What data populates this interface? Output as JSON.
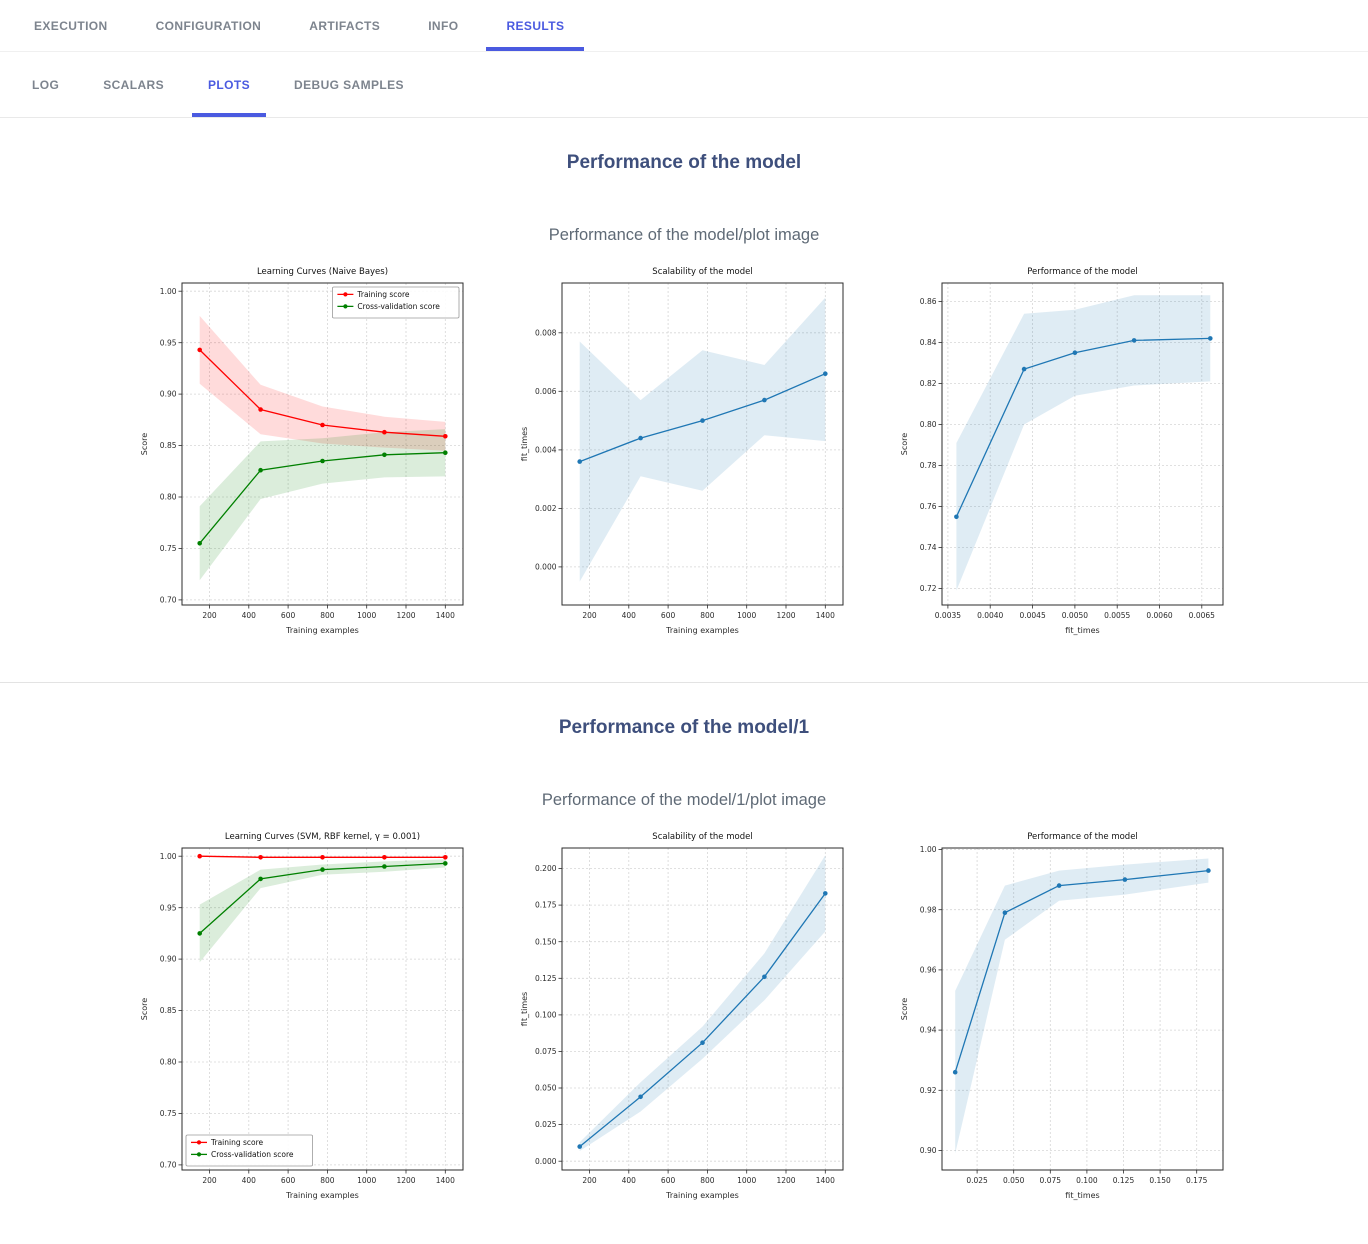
{
  "theme": {
    "accent": "#4a5ae0",
    "heading_color": "#3e4f7c",
    "subtitle_color": "#5f6a76",
    "inactive_tab_color": "#7d848e",
    "series_red": "#ff0000",
    "series_green": "#008000",
    "series_blue": "#1f77b4"
  },
  "nav": {
    "tabs": [
      {
        "label": "EXECUTION",
        "active": false
      },
      {
        "label": "CONFIGURATION",
        "active": false
      },
      {
        "label": "ARTIFACTS",
        "active": false
      },
      {
        "label": "INFO",
        "active": false
      },
      {
        "label": "RESULTS",
        "active": true
      }
    ]
  },
  "subnav": {
    "tabs": [
      {
        "label": "LOG",
        "active": false
      },
      {
        "label": "SCALARS",
        "active": false
      },
      {
        "label": "PLOTS",
        "active": true
      },
      {
        "label": "DEBUG SAMPLES",
        "active": false
      }
    ]
  },
  "sections": [
    {
      "title": "Performance of the model",
      "subtitle": "Performance of the model/plot image",
      "chart_ids": [
        0,
        1,
        2
      ]
    },
    {
      "title": "Performance of the model/1",
      "subtitle": "Performance of the model/1/plot image",
      "chart_ids": [
        3,
        4,
        5
      ]
    }
  ],
  "chart_data": [
    {
      "type": "line",
      "title": "Learning Curves (Naive Bayes)",
      "xlabel": "Training examples",
      "ylabel": "Score",
      "xlim": [
        60,
        1490
      ],
      "ylim": [
        0.695,
        1.008
      ],
      "xticks": [
        200,
        400,
        600,
        800,
        1000,
        1200,
        1400
      ],
      "xtick_labels": [
        "200",
        "400",
        "600",
        "800",
        "1000",
        "1200",
        "1400"
      ],
      "yticks": [
        0.7,
        0.75,
        0.8,
        0.85,
        0.9,
        0.95,
        1.0
      ],
      "ytick_labels": [
        "0.70",
        "0.75",
        "0.80",
        "0.85",
        "0.90",
        "0.95",
        "1.00"
      ],
      "grid": true,
      "legend": "top-right",
      "series": [
        {
          "name": "Training score",
          "color": "#ff0000",
          "x": [
            150,
            460,
            775,
            1090,
            1400
          ],
          "y": [
            0.943,
            0.885,
            0.87,
            0.863,
            0.859
          ],
          "band_lo": [
            0.91,
            0.861,
            0.852,
            0.848,
            0.845
          ],
          "band_hi": [
            0.976,
            0.909,
            0.888,
            0.878,
            0.873
          ]
        },
        {
          "name": "Cross-validation score",
          "color": "#008000",
          "x": [
            150,
            460,
            775,
            1090,
            1400
          ],
          "y": [
            0.755,
            0.826,
            0.835,
            0.841,
            0.843
          ],
          "band_lo": [
            0.719,
            0.798,
            0.813,
            0.819,
            0.82
          ],
          "band_hi": [
            0.791,
            0.854,
            0.857,
            0.863,
            0.866
          ]
        }
      ]
    },
    {
      "type": "line",
      "title": "Scalability of the model",
      "xlabel": "Training examples",
      "ylabel": "fit_times",
      "xlim": [
        60,
        1490
      ],
      "ylim": [
        -0.0013,
        0.0097
      ],
      "xticks": [
        200,
        400,
        600,
        800,
        1000,
        1200,
        1400
      ],
      "xtick_labels": [
        "200",
        "400",
        "600",
        "800",
        "1000",
        "1200",
        "1400"
      ],
      "yticks": [
        0.0,
        0.002,
        0.004,
        0.006,
        0.008
      ],
      "ytick_labels": [
        "0.000",
        "0.002",
        "0.004",
        "0.006",
        "0.008"
      ],
      "grid": true,
      "legend": null,
      "series": [
        {
          "name": "fit_times",
          "color": "#1f77b4",
          "x": [
            150,
            460,
            775,
            1090,
            1400
          ],
          "y": [
            0.0036,
            0.0044,
            0.005,
            0.0057,
            0.0066
          ],
          "band_lo": [
            -0.0005,
            0.0031,
            0.0026,
            0.0045,
            0.0043
          ],
          "band_hi": [
            0.0077,
            0.0057,
            0.0074,
            0.0069,
            0.0092
          ]
        }
      ]
    },
    {
      "type": "line",
      "title": "Performance of the model",
      "xlabel": "fit_times",
      "ylabel": "Score",
      "xlim": [
        0.00343,
        0.00675
      ],
      "ylim": [
        0.712,
        0.869
      ],
      "xticks": [
        0.0035,
        0.004,
        0.0045,
        0.005,
        0.0055,
        0.006,
        0.0065
      ],
      "xtick_labels": [
        "0.0035",
        "0.0040",
        "0.0045",
        "0.0050",
        "0.0055",
        "0.0060",
        "0.0065"
      ],
      "yticks": [
        0.72,
        0.74,
        0.76,
        0.78,
        0.8,
        0.82,
        0.84,
        0.86
      ],
      "ytick_labels": [
        "0.72",
        "0.74",
        "0.76",
        "0.78",
        "0.80",
        "0.82",
        "0.84",
        "0.86"
      ],
      "grid": true,
      "legend": null,
      "series": [
        {
          "name": "Score",
          "color": "#1f77b4",
          "x": [
            0.0036,
            0.0044,
            0.005,
            0.0057,
            0.0066
          ],
          "y": [
            0.755,
            0.827,
            0.835,
            0.841,
            0.842
          ],
          "band_lo": [
            0.719,
            0.8,
            0.814,
            0.819,
            0.821
          ],
          "band_hi": [
            0.791,
            0.854,
            0.856,
            0.863,
            0.863
          ]
        }
      ]
    },
    {
      "type": "line",
      "title": "Learning Curves (SVM, RBF kernel, γ = 0.001)",
      "xlabel": "Training examples",
      "ylabel": "Score",
      "xlim": [
        60,
        1490
      ],
      "ylim": [
        0.695,
        1.008
      ],
      "xticks": [
        200,
        400,
        600,
        800,
        1000,
        1200,
        1400
      ],
      "xtick_labels": [
        "200",
        "400",
        "600",
        "800",
        "1000",
        "1200",
        "1400"
      ],
      "yticks": [
        0.7,
        0.75,
        0.8,
        0.85,
        0.9,
        0.95,
        1.0
      ],
      "ytick_labels": [
        "0.70",
        "0.75",
        "0.80",
        "0.85",
        "0.90",
        "0.95",
        "1.00"
      ],
      "grid": true,
      "legend": "bottom-left",
      "series": [
        {
          "name": "Training score",
          "color": "#ff0000",
          "x": [
            150,
            460,
            775,
            1090,
            1400
          ],
          "y": [
            1.0,
            0.999,
            0.999,
            0.999,
            0.999
          ],
          "band_lo": [
            0.9995,
            0.9983,
            0.9985,
            0.9987,
            0.9988
          ],
          "band_hi": [
            1.0005,
            0.9997,
            0.9995,
            0.9993,
            0.9992
          ]
        },
        {
          "name": "Cross-validation score",
          "color": "#008000",
          "x": [
            150,
            460,
            775,
            1090,
            1400
          ],
          "y": [
            0.925,
            0.978,
            0.987,
            0.99,
            0.993
          ],
          "band_lo": [
            0.897,
            0.969,
            0.982,
            0.985,
            0.989
          ],
          "band_hi": [
            0.953,
            0.987,
            0.992,
            0.995,
            0.997
          ]
        }
      ]
    },
    {
      "type": "line",
      "title": "Scalability of the model",
      "xlabel": "Training examples",
      "ylabel": "fit_times",
      "xlim": [
        60,
        1490
      ],
      "ylim": [
        -0.006,
        0.214
      ],
      "xticks": [
        200,
        400,
        600,
        800,
        1000,
        1200,
        1400
      ],
      "xtick_labels": [
        "200",
        "400",
        "600",
        "800",
        "1000",
        "1200",
        "1400"
      ],
      "yticks": [
        0.0,
        0.025,
        0.05,
        0.075,
        0.1,
        0.125,
        0.15,
        0.175,
        0.2
      ],
      "ytick_labels": [
        "0.000",
        "0.025",
        "0.050",
        "0.075",
        "0.100",
        "0.125",
        "0.150",
        "0.175",
        "0.200"
      ],
      "grid": true,
      "legend": null,
      "series": [
        {
          "name": "fit_times",
          "color": "#1f77b4",
          "x": [
            150,
            460,
            775,
            1090,
            1400
          ],
          "y": [
            0.01,
            0.044,
            0.081,
            0.126,
            0.183
          ],
          "band_lo": [
            0.007,
            0.034,
            0.07,
            0.11,
            0.157
          ],
          "band_hi": [
            0.013,
            0.054,
            0.092,
            0.142,
            0.209
          ]
        }
      ]
    },
    {
      "type": "line",
      "title": "Performance of the model",
      "xlabel": "fit_times",
      "ylabel": "Score",
      "xlim": [
        0.001,
        0.193
      ],
      "ylim": [
        0.8935,
        1.0005
      ],
      "xticks": [
        0.025,
        0.05,
        0.075,
        0.1,
        0.125,
        0.15,
        0.175
      ],
      "xtick_labels": [
        "0.025",
        "0.050",
        "0.075",
        "0.100",
        "0.125",
        "0.150",
        "0.175"
      ],
      "yticks": [
        0.9,
        0.92,
        0.94,
        0.96,
        0.98,
        1.0
      ],
      "ytick_labels": [
        "0.90",
        "0.92",
        "0.94",
        "0.96",
        "0.98",
        "1.00"
      ],
      "grid": true,
      "legend": null,
      "series": [
        {
          "name": "Score",
          "color": "#1f77b4",
          "x": [
            0.01,
            0.044,
            0.081,
            0.126,
            0.183
          ],
          "y": [
            0.926,
            0.979,
            0.988,
            0.99,
            0.993
          ],
          "band_lo": [
            0.899,
            0.97,
            0.983,
            0.985,
            0.989
          ],
          "band_hi": [
            0.953,
            0.988,
            0.993,
            0.995,
            0.997
          ]
        }
      ]
    }
  ]
}
